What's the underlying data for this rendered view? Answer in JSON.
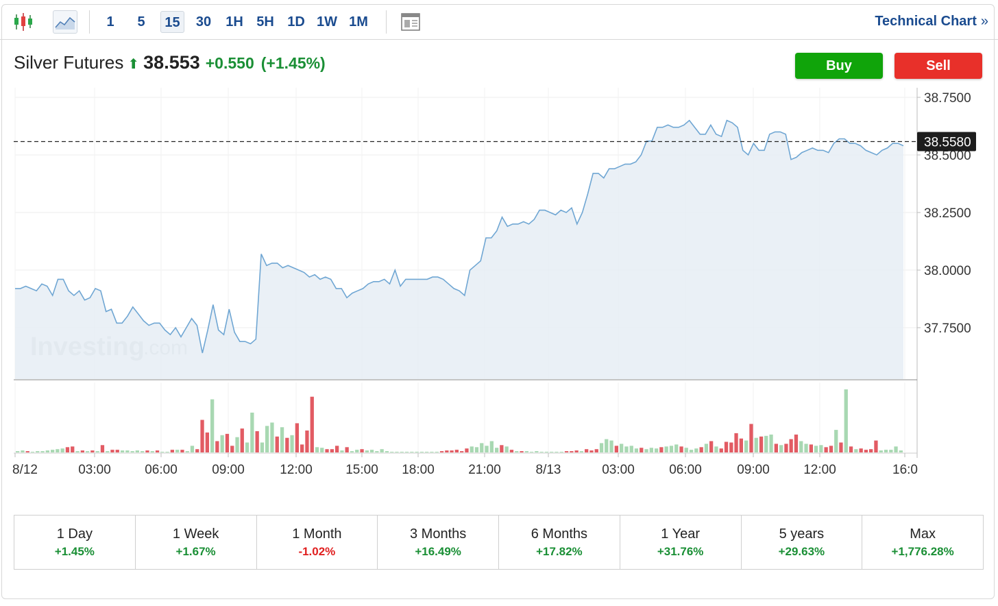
{
  "toolbar": {
    "timeframes": [
      "1",
      "5",
      "15",
      "30",
      "1H",
      "5H",
      "1D",
      "1W",
      "1M"
    ],
    "active_timeframe": "15",
    "technical_chart_label": "Technical Chart",
    "technical_chart_chevron": "»",
    "icons": [
      "candlestick-icon",
      "line-chart-icon",
      "layout-icon"
    ]
  },
  "instrument": {
    "name": "Silver Futures",
    "direction_icon": "up-arrow-icon",
    "price": "38.553",
    "change": "+0.550",
    "change_pct": "(+1.45%)"
  },
  "actions": {
    "buy_label": "Buy",
    "sell_label": "Sell"
  },
  "chart_data": {
    "type": "area",
    "y_ticks": [
      "38.7500",
      "38.5000",
      "38.2500",
      "38.0000",
      "37.7500"
    ],
    "ylim": [
      37.52,
      38.77
    ],
    "current_value_label": "38.5580",
    "current_value": 38.558,
    "x_ticks": [
      "8/12",
      "03:00",
      "06:00",
      "09:00",
      "12:00",
      "15:00",
      "18:00",
      "21:00",
      "8/13",
      "03:00",
      "06:00",
      "09:00",
      "12:00",
      "16:0"
    ],
    "watermark": "Investing.com",
    "grid": true,
    "colors": {
      "line": "#6fa6d3",
      "fill": "#e6edf5",
      "up_volume": "#a8d8b2",
      "down_volume": "#e25b63"
    },
    "price_series": [
      37.92,
      37.92,
      37.93,
      37.92,
      37.91,
      37.94,
      37.93,
      37.89,
      37.96,
      37.96,
      37.91,
      37.89,
      37.91,
      37.87,
      37.88,
      37.92,
      37.91,
      37.82,
      37.83,
      37.77,
      37.77,
      37.8,
      37.84,
      37.81,
      37.78,
      37.76,
      37.77,
      37.77,
      37.74,
      37.72,
      37.75,
      37.71,
      37.75,
      37.79,
      37.76,
      37.64,
      37.74,
      37.85,
      37.74,
      37.72,
      37.83,
      37.73,
      37.69,
      37.69,
      37.68,
      37.7,
      38.07,
      38.02,
      38.03,
      38.03,
      38.01,
      38.02,
      38.01,
      38.0,
      37.99,
      37.97,
      37.98,
      37.96,
      37.97,
      37.96,
      37.92,
      37.92,
      37.88,
      37.9,
      37.91,
      37.92,
      37.94,
      37.95,
      37.95,
      37.96,
      37.94,
      38.0,
      37.93,
      37.96,
      37.96,
      37.96,
      37.96,
      37.96,
      37.97,
      37.97,
      37.96,
      37.94,
      37.92,
      37.91,
      37.89,
      38.0,
      38.02,
      38.04,
      38.14,
      38.14,
      38.17,
      38.23,
      38.19,
      38.2,
      38.2,
      38.21,
      38.2,
      38.22,
      38.26,
      38.26,
      38.25,
      38.24,
      38.26,
      38.25,
      38.27,
      38.2,
      38.25,
      38.33,
      38.42,
      38.42,
      38.4,
      38.44,
      38.44,
      38.45,
      38.46,
      38.46,
      38.47,
      38.5,
      38.56,
      38.56,
      38.62,
      38.62,
      38.63,
      38.62,
      38.62,
      38.63,
      38.65,
      38.62,
      38.59,
      38.59,
      38.63,
      38.59,
      38.58,
      38.65,
      38.64,
      38.62,
      38.52,
      38.5,
      38.55,
      38.52,
      38.52,
      38.59,
      38.6,
      38.6,
      38.59,
      38.48,
      38.49,
      38.51,
      38.52,
      38.53,
      38.52,
      38.52,
      38.51,
      38.55,
      38.57,
      38.57,
      38.55,
      38.55,
      38.54,
      38.52,
      38.51,
      38.5,
      38.52,
      38.53,
      38.55,
      38.55,
      38.54
    ],
    "volume_series": [
      [
        2,
        "u"
      ],
      [
        3,
        "u"
      ],
      [
        2,
        "d"
      ],
      [
        1,
        "u"
      ],
      [
        2,
        "u"
      ],
      [
        2,
        "u"
      ],
      [
        3,
        "u"
      ],
      [
        4,
        "u"
      ],
      [
        5,
        "u"
      ],
      [
        6,
        "u"
      ],
      [
        8,
        "d"
      ],
      [
        9,
        "d"
      ],
      [
        2,
        "u"
      ],
      [
        3,
        "d"
      ],
      [
        2,
        "u"
      ],
      [
        3,
        "d"
      ],
      [
        2,
        "u"
      ],
      [
        11,
        "d"
      ],
      [
        2,
        "u"
      ],
      [
        4,
        "d"
      ],
      [
        4,
        "d"
      ],
      [
        3,
        "u"
      ],
      [
        3,
        "u"
      ],
      [
        2,
        "u"
      ],
      [
        3,
        "u"
      ],
      [
        2,
        "u"
      ],
      [
        3,
        "d"
      ],
      [
        2,
        "u"
      ],
      [
        3,
        "d"
      ],
      [
        1,
        "u"
      ],
      [
        1,
        "u"
      ],
      [
        4,
        "d"
      ],
      [
        4,
        "u"
      ],
      [
        4,
        "d"
      ],
      [
        2,
        "u"
      ],
      [
        10,
        "u"
      ],
      [
        5,
        "d"
      ],
      [
        49,
        "d"
      ],
      [
        30,
        "d"
      ],
      [
        80,
        "u"
      ],
      [
        17,
        "d"
      ],
      [
        26,
        "u"
      ],
      [
        28,
        "d"
      ],
      [
        10,
        "d"
      ],
      [
        23,
        "u"
      ],
      [
        36,
        "d"
      ],
      [
        15,
        "u"
      ],
      [
        60,
        "u"
      ],
      [
        32,
        "d"
      ],
      [
        15,
        "u"
      ],
      [
        40,
        "u"
      ],
      [
        45,
        "u"
      ],
      [
        24,
        "d"
      ],
      [
        38,
        "u"
      ],
      [
        22,
        "d"
      ],
      [
        26,
        "u"
      ],
      [
        44,
        "d"
      ],
      [
        12,
        "d"
      ],
      [
        33,
        "d"
      ],
      [
        84,
        "d"
      ],
      [
        8,
        "u"
      ],
      [
        7,
        "u"
      ],
      [
        5,
        "d"
      ],
      [
        5,
        "d"
      ],
      [
        10,
        "d"
      ],
      [
        3,
        "u"
      ],
      [
        8,
        "d"
      ],
      [
        2,
        "u"
      ],
      [
        4,
        "u"
      ],
      [
        5,
        "d"
      ],
      [
        3,
        "u"
      ],
      [
        4,
        "u"
      ],
      [
        2,
        "u"
      ],
      [
        5,
        "u"
      ],
      [
        2,
        "u"
      ],
      [
        1,
        "u"
      ],
      [
        1,
        "u"
      ],
      [
        1,
        "u"
      ],
      [
        1,
        "u"
      ],
      [
        1,
        "u"
      ],
      [
        1,
        "u"
      ],
      [
        1,
        "u"
      ],
      [
        1,
        "u"
      ],
      [
        1,
        "u"
      ],
      [
        1,
        "u"
      ],
      [
        2,
        "d"
      ],
      [
        3,
        "d"
      ],
      [
        3,
        "d"
      ],
      [
        4,
        "d"
      ],
      [
        2,
        "d"
      ],
      [
        6,
        "d"
      ],
      [
        9,
        "u"
      ],
      [
        8,
        "u"
      ],
      [
        14,
        "u"
      ],
      [
        10,
        "u"
      ],
      [
        17,
        "u"
      ],
      [
        7,
        "u"
      ],
      [
        11,
        "d"
      ],
      [
        9,
        "u"
      ],
      [
        4,
        "d"
      ],
      [
        2,
        "u"
      ],
      [
        2,
        "d"
      ],
      [
        2,
        "u"
      ],
      [
        1,
        "u"
      ],
      [
        2,
        "u"
      ],
      [
        1,
        "u"
      ],
      [
        1,
        "u"
      ],
      [
        1,
        "u"
      ],
      [
        1,
        "u"
      ],
      [
        1,
        "u"
      ],
      [
        2,
        "d"
      ],
      [
        2,
        "d"
      ],
      [
        3,
        "d"
      ],
      [
        2,
        "u"
      ],
      [
        5,
        "d"
      ],
      [
        3,
        "d"
      ],
      [
        5,
        "d"
      ],
      [
        14,
        "u"
      ],
      [
        20,
        "u"
      ],
      [
        18,
        "u"
      ],
      [
        10,
        "d"
      ],
      [
        13,
        "u"
      ],
      [
        9,
        "u"
      ],
      [
        10,
        "u"
      ],
      [
        6,
        "u"
      ],
      [
        7,
        "d"
      ],
      [
        5,
        "u"
      ],
      [
        7,
        "u"
      ],
      [
        6,
        "u"
      ],
      [
        8,
        "d"
      ],
      [
        9,
        "u"
      ],
      [
        10,
        "u"
      ],
      [
        12,
        "u"
      ],
      [
        9,
        "d"
      ],
      [
        7,
        "u"
      ],
      [
        4,
        "u"
      ],
      [
        6,
        "u"
      ],
      [
        8,
        "d"
      ],
      [
        13,
        "u"
      ],
      [
        17,
        "d"
      ],
      [
        9,
        "u"
      ],
      [
        6,
        "d"
      ],
      [
        16,
        "d"
      ],
      [
        15,
        "d"
      ],
      [
        29,
        "d"
      ],
      [
        21,
        "d"
      ],
      [
        18,
        "u"
      ],
      [
        43,
        "d"
      ],
      [
        22,
        "u"
      ],
      [
        24,
        "d"
      ],
      [
        25,
        "u"
      ],
      [
        27,
        "u"
      ],
      [
        13,
        "d"
      ],
      [
        11,
        "u"
      ],
      [
        13,
        "d"
      ],
      [
        20,
        "d"
      ],
      [
        27,
        "d"
      ],
      [
        17,
        "u"
      ],
      [
        13,
        "u"
      ],
      [
        12,
        "d"
      ],
      [
        10,
        "u"
      ],
      [
        11,
        "u"
      ],
      [
        8,
        "d"
      ],
      [
        10,
        "d"
      ],
      [
        34,
        "u"
      ],
      [
        15,
        "d"
      ],
      [
        95,
        "u"
      ],
      [
        9,
        "d"
      ],
      [
        5,
        "u"
      ],
      [
        6,
        "d"
      ],
      [
        4,
        "d"
      ],
      [
        5,
        "d"
      ],
      [
        18,
        "d"
      ],
      [
        3,
        "u"
      ],
      [
        4,
        "u"
      ],
      [
        4,
        "u"
      ],
      [
        9,
        "u"
      ],
      [
        3,
        "u"
      ]
    ]
  },
  "periods": [
    {
      "label": "1 Day",
      "value": "+1.45%",
      "dir": "pos"
    },
    {
      "label": "1 Week",
      "value": "+1.67%",
      "dir": "pos"
    },
    {
      "label": "1 Month",
      "value": "-1.02%",
      "dir": "neg"
    },
    {
      "label": "3 Months",
      "value": "+16.49%",
      "dir": "pos"
    },
    {
      "label": "6 Months",
      "value": "+17.82%",
      "dir": "pos"
    },
    {
      "label": "1 Year",
      "value": "+31.76%",
      "dir": "pos"
    },
    {
      "label": "5 years",
      "value": "+29.63%",
      "dir": "pos"
    },
    {
      "label": "Max",
      "value": "+1,776.28%",
      "dir": "pos"
    }
  ]
}
